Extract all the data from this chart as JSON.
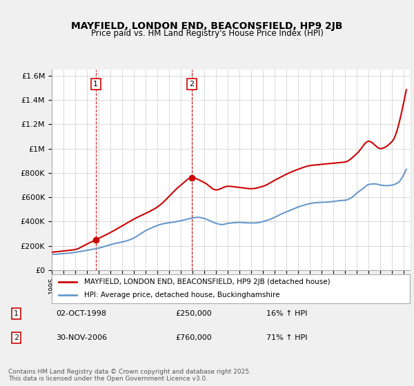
{
  "title": "MAYFIELD, LONDON END, BEACONSFIELD, HP9 2JB",
  "subtitle": "Price paid vs. HM Land Registry's House Price Index (HPI)",
  "ylabel_ticks": [
    "£0",
    "£200K",
    "£400K",
    "£600K",
    "£800K",
    "£1M",
    "£1.2M",
    "£1.4M",
    "£1.6M"
  ],
  "ylim": [
    0,
    1650000
  ],
  "xlim": [
    1995,
    2025.5
  ],
  "legend_line1": "MAYFIELD, LONDON END, BEACONSFIELD, HP9 2JB (detached house)",
  "legend_line2": "HPI: Average price, detached house, Buckinghamshire",
  "transaction1_label": "1",
  "transaction1_date": "02-OCT-1998",
  "transaction1_price": "£250,000",
  "transaction1_hpi": "16% ↑ HPI",
  "transaction1_x": 1998.75,
  "transaction1_y": 250000,
  "transaction2_label": "2",
  "transaction2_date": "30-NOV-2006",
  "transaction2_price": "£760,000",
  "transaction2_hpi": "71% ↑ HPI",
  "transaction2_x": 2006.92,
  "transaction2_y": 760000,
  "red_color": "#cc0000",
  "blue_color": "#6699cc",
  "background_color": "#f0f0f0",
  "plot_background": "#ffffff",
  "grid_color": "#cccccc",
  "footer": "Contains HM Land Registry data © Crown copyright and database right 2025.\nThis data is licensed under the Open Government Licence v3.0."
}
